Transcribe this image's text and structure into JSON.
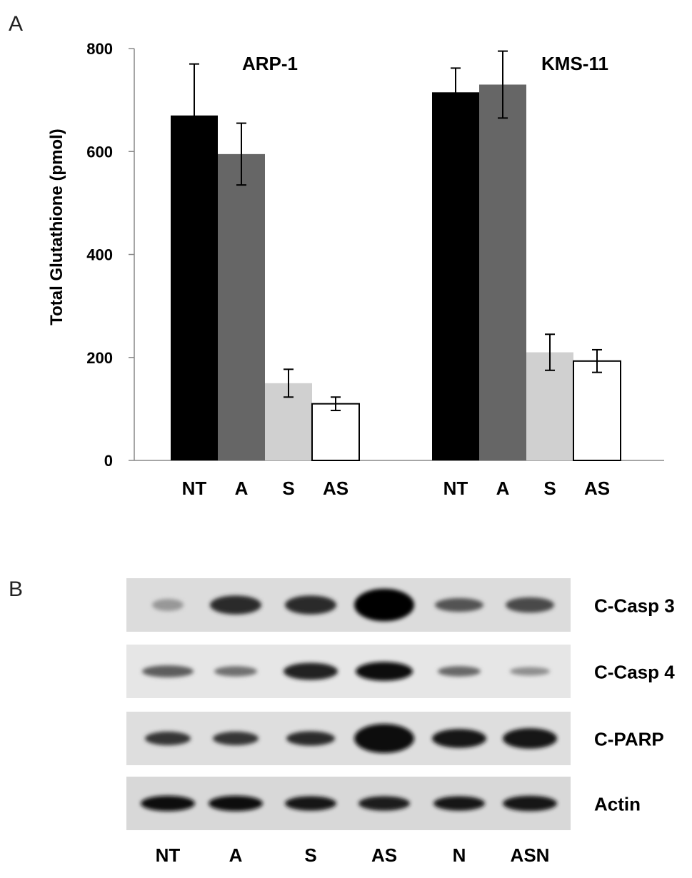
{
  "panels": {
    "a_label": "A",
    "b_label": "B"
  },
  "chart_data": {
    "type": "bar",
    "ylabel": "Total Glutathione (pmol)",
    "ylim": [
      0,
      800
    ],
    "yticks": [
      0,
      200,
      400,
      600,
      800
    ],
    "categories": [
      "NT",
      "A",
      "S",
      "AS"
    ],
    "colors": {
      "NT": "#000000",
      "A": "#666666",
      "S": "#d0d0d0",
      "AS": "#ffffff"
    },
    "grid": false,
    "groups": [
      {
        "name": "ARP-1",
        "values": [
          670,
          595,
          150,
          110
        ],
        "errors": [
          100,
          60,
          27,
          13
        ]
      },
      {
        "name": "KMS-11",
        "values": [
          715,
          730,
          210,
          193
        ],
        "errors": [
          47,
          65,
          35,
          22
        ]
      }
    ]
  },
  "blot": {
    "lanes": [
      "NT",
      "A",
      "S",
      "AS",
      "N",
      "ASN"
    ],
    "rows": [
      {
        "label": "C-Casp 3",
        "bg": "#dcdcdc",
        "intensities": [
          0.25,
          0.8,
          0.8,
          1.0,
          0.6,
          0.65
        ],
        "widths": [
          0.55,
          0.9,
          0.9,
          1.05,
          0.85,
          0.85
        ],
        "thick": [
          0.35,
          0.55,
          0.55,
          0.95,
          0.4,
          0.45
        ]
      },
      {
        "label": "C-Casp 4",
        "bg": "#e6e6e6",
        "intensities": [
          0.55,
          0.45,
          0.85,
          0.95,
          0.5,
          0.3
        ],
        "widths": [
          0.9,
          0.75,
          0.95,
          1.0,
          0.75,
          0.7
        ],
        "thick": [
          0.35,
          0.3,
          0.5,
          0.55,
          0.3,
          0.25
        ]
      },
      {
        "label": "C-PARP",
        "bg": "#dedede",
        "intensities": [
          0.75,
          0.75,
          0.8,
          0.95,
          0.9,
          0.92
        ],
        "widths": [
          0.8,
          0.8,
          0.85,
          1.05,
          0.95,
          0.95
        ],
        "thick": [
          0.4,
          0.4,
          0.42,
          0.85,
          0.55,
          0.6
        ]
      },
      {
        "label": "Actin",
        "bg": "#d8d8d8",
        "intensities": [
          0.95,
          0.95,
          0.9,
          0.88,
          0.9,
          0.92
        ],
        "widths": [
          0.95,
          0.95,
          0.9,
          0.9,
          0.9,
          0.95
        ],
        "thick": [
          0.45,
          0.45,
          0.42,
          0.42,
          0.42,
          0.45
        ]
      }
    ]
  }
}
